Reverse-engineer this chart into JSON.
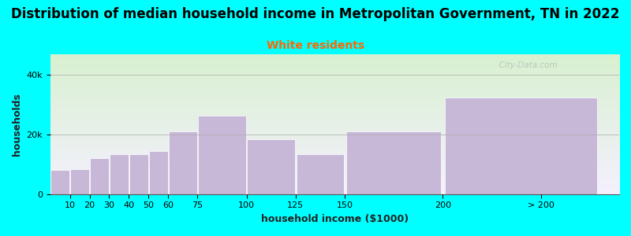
{
  "title": "Distribution of median household income in Metropolitan Government, TN in 2022",
  "subtitle": "White residents",
  "xlabel": "household income ($1000)",
  "ylabel": "households",
  "background_color": "#00FFFF",
  "bar_color": "#c8b8d8",
  "categories": [
    "10",
    "20",
    "30",
    "40",
    "50",
    "60",
    "75",
    "100",
    "125",
    "150",
    "200",
    "> 200"
  ],
  "left_edges": [
    0,
    10,
    20,
    30,
    40,
    50,
    60,
    75,
    100,
    125,
    150,
    200
  ],
  "widths": [
    10,
    10,
    10,
    10,
    10,
    10,
    15,
    25,
    25,
    25,
    50,
    80
  ],
  "values": [
    8000,
    8500,
    12000,
    13500,
    13500,
    14500,
    21000,
    26500,
    18500,
    13500,
    21000,
    32500
  ],
  "xtick_positions": [
    10,
    20,
    30,
    40,
    50,
    60,
    75,
    100,
    125,
    150,
    200,
    250
  ],
  "xlim": [
    0,
    290
  ],
  "ylim": [
    0,
    47000
  ],
  "yticks": [
    0,
    20000,
    40000
  ],
  "title_fontsize": 12,
  "subtitle_fontsize": 10,
  "subtitle_color": "#ff6600",
  "watermark": "  City-Data.com",
  "title_color": "#000000",
  "axis_label_fontsize": 9,
  "tick_fontsize": 8
}
